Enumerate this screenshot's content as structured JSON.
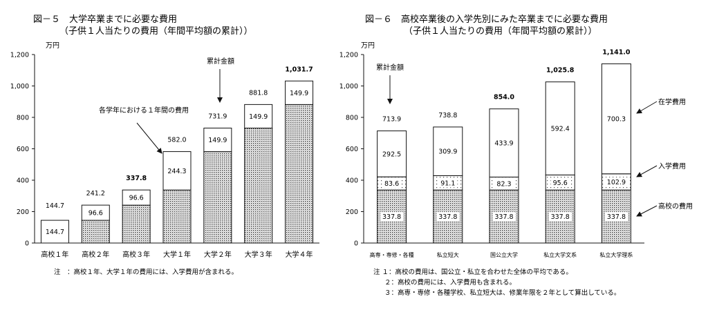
{
  "chart_data": [
    {
      "type": "bar",
      "stacked": true,
      "title": "図－５　大学卒業までに必要な費用",
      "subtitle": "（子供１人当たりの費用（年間平均額の累計））",
      "ylabel": "万円",
      "ylim": [
        0,
        1200
      ],
      "yticks": [
        "0",
        "200",
        "400",
        "600",
        "800",
        "1,000",
        "1,200"
      ],
      "categories": [
        "高校１年",
        "高校２年",
        "高校３年",
        "大学１年",
        "大学２年",
        "大学３年",
        "大学４年"
      ],
      "series": [
        {
          "values": [
            0,
            144.7,
            241.2,
            337.8,
            582.0,
            731.9,
            881.8
          ]
        },
        {
          "values": [
            144.7,
            96.6,
            96.6,
            244.3,
            149.9,
            149.9,
            149.9
          ]
        }
      ],
      "segment_labels": [
        [
          null,
          "144.7"
        ],
        [
          null,
          "96.6"
        ],
        [
          null,
          "96.6"
        ],
        [
          null,
          "244.3"
        ],
        [
          null,
          "149.9"
        ],
        [
          null,
          "149.9"
        ],
        [
          null,
          "149.9"
        ]
      ],
      "totals": [
        "144.7",
        "241.2",
        "337.8",
        "582.0",
        "731.9",
        "881.8",
        "1,031.7"
      ],
      "bold_totals": [
        false,
        false,
        true,
        false,
        false,
        false,
        true
      ],
      "annotations": [
        "累計金額",
        "各学年における１年間の費用"
      ],
      "note": "注　：高校１年、大学１年の費用には、入学費用が含まれる。"
    },
    {
      "type": "bar",
      "stacked": true,
      "title": "図－６　高校卒業後の入学先別にみた卒業までに必要な費用",
      "subtitle": "（子供１人当たりの費用（年間平均額の累計））",
      "ylabel": "万円",
      "ylim": [
        0,
        1200
      ],
      "yticks": [
        "0",
        "200",
        "400",
        "600",
        "800",
        "1,000",
        "1,200"
      ],
      "categories": [
        "高専・専修・各種",
        "私立短大",
        "国公立大学",
        "私立大学文系",
        "私立大学理系"
      ],
      "series": [
        {
          "name": "高校の費用",
          "values": [
            337.8,
            337.8,
            337.8,
            337.8,
            337.8
          ]
        },
        {
          "name": "入学費用",
          "values": [
            83.6,
            91.1,
            82.3,
            95.6,
            102.9
          ]
        },
        {
          "name": "在学費用",
          "values": [
            292.5,
            309.9,
            433.9,
            592.4,
            700.3
          ]
        }
      ],
      "segment_labels": [
        [
          "337.8",
          "83.6",
          "292.5"
        ],
        [
          "337.8",
          "91.1",
          "309.9"
        ],
        [
          "337.8",
          "82.3",
          "433.9"
        ],
        [
          "337.8",
          "95.6",
          "592.4"
        ],
        [
          "337.8",
          "102.9",
          "700.3"
        ]
      ],
      "totals": [
        "713.9",
        "738.8",
        "854.0",
        "1,025.8",
        "1,141.0"
      ],
      "bold_totals": [
        false,
        false,
        true,
        true,
        true
      ],
      "annotations": [
        "累計金額"
      ],
      "notes": [
        "注 １：高校の費用は、国公立・私立を合わせた全体の平均である。",
        "２：高校の費用には、入学費用も含まれる。",
        "３：高専・専修・各種学校、私立短大は、修業年限を２年として算出している。"
      ]
    }
  ]
}
